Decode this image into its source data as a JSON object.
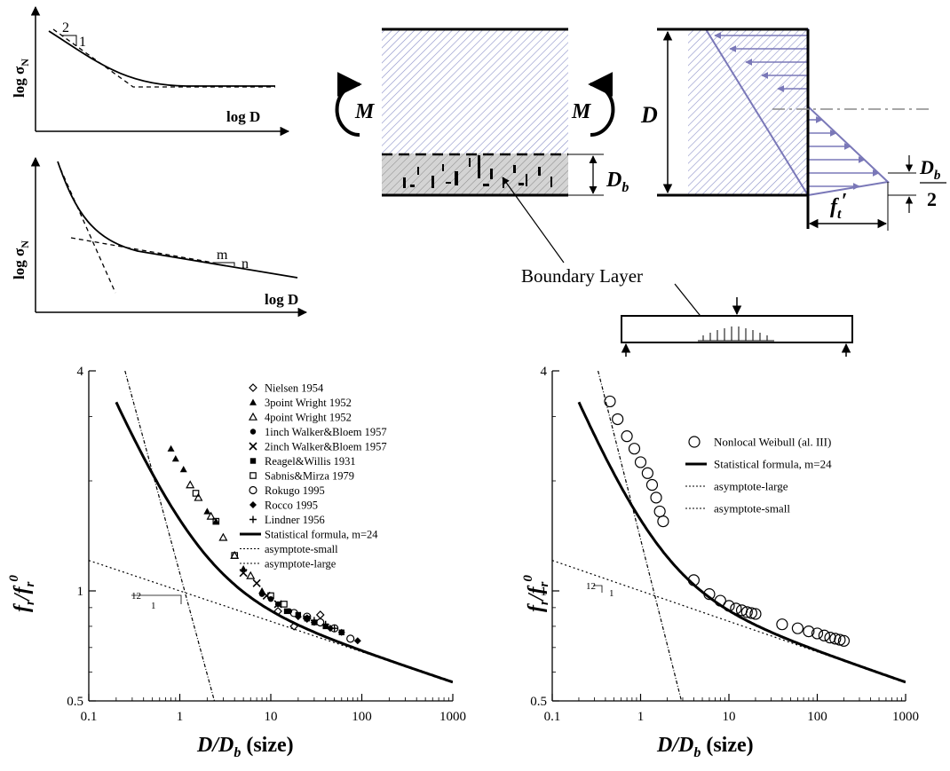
{
  "colors": {
    "line": "#000000",
    "stress": "#7a78b8",
    "hatch": "#8a8fc8",
    "layer": "#bfbfbf",
    "centerline": "#888888"
  },
  "sketch_top": {
    "ylabel": "log σ",
    "ysub": "N",
    "xlabel": "log D",
    "slope_rise": "2",
    "slope_run": "1"
  },
  "sketch_bottom": {
    "ylabel": "log σ",
    "ysub": "N",
    "xlabel": "log D",
    "slope_m": "m",
    "slope_n": "n"
  },
  "beam": {
    "moment_left": "M",
    "moment_right": "M",
    "layer_label": "D",
    "layer_sub": "b",
    "boundary_label": "Boundary Layer"
  },
  "stress": {
    "depth": "D",
    "ft": "f",
    "ft_sub": "t",
    "ft_prime": "′",
    "half_num": "D",
    "half_num_sub": "b",
    "half_den": "2"
  },
  "chart_data": [
    {
      "type": "scatter",
      "xlabel": "D/D",
      "xlabel_sub": "b",
      "xlabel_tail": " (size)",
      "ylabel": "f",
      "ylabel_sub": "r",
      "ylabel_mid": "/f",
      "ylabel_sub2": "r",
      "ylabel_sup": "0",
      "xscale": "log",
      "yscale": "log",
      "xlim": [
        0.1,
        1000
      ],
      "ylim": [
        0.5,
        4
      ],
      "xticks": [
        "0.1",
        "1",
        "10",
        "100",
        "1000"
      ],
      "yticks": [
        "0.5",
        "1",
        "4"
      ],
      "slope_label_rise": "12",
      "slope_label_run": "1",
      "legend": [
        {
          "name": "Nielsen 1954",
          "marker": "diamond-open"
        },
        {
          "name": "3point Wright 1952",
          "marker": "triangle-filled"
        },
        {
          "name": "4point Wright 1952",
          "marker": "triangle-open"
        },
        {
          "name": "1inch Walker&Bloem 1957",
          "marker": "circle-filled"
        },
        {
          "name": "2inch Walker&Bloem 1957",
          "marker": "x"
        },
        {
          "name": "Reagel&Willis 1931",
          "marker": "square-filled"
        },
        {
          "name": "Sabnis&Mirza 1979",
          "marker": "square-open"
        },
        {
          "name": "Rokugo 1995",
          "marker": "circle-open"
        },
        {
          "name": "Rocco 1995",
          "marker": "diamond-filled"
        },
        {
          "name": "Lindner 1956",
          "marker": "plus"
        },
        {
          "name": "Statistical formula, m=24",
          "marker": "line-thick"
        },
        {
          "name": "asymptote-small",
          "marker": "line-dot"
        },
        {
          "name": "asymptote-large",
          "marker": "line-dot"
        }
      ],
      "series": [
        {
          "name": "3point Wright 1952",
          "marker": "triangle-filled",
          "x": [
            0.8,
            0.9,
            1.1,
            2.0,
            2.5,
            5,
            8
          ],
          "y": [
            2.45,
            2.3,
            2.15,
            1.65,
            1.55,
            1.15,
            1.0
          ]
        },
        {
          "name": "4point Wright 1952",
          "marker": "triangle-open",
          "x": [
            1.3,
            1.6,
            2.2,
            3,
            4,
            6
          ],
          "y": [
            1.95,
            1.8,
            1.6,
            1.4,
            1.25,
            1.1
          ]
        },
        {
          "name": "Sabnis&Mirza 1979",
          "marker": "square-open",
          "x": [
            1.5,
            2.5,
            4,
            10,
            14
          ],
          "y": [
            1.85,
            1.55,
            1.25,
            0.97,
            0.92
          ]
        },
        {
          "name": "2inch Walker&Bloem 1957",
          "marker": "x",
          "x": [
            5,
            7,
            9,
            12
          ],
          "y": [
            1.12,
            1.05,
            0.97,
            0.92
          ]
        },
        {
          "name": "1inch Walker&Bloem 1957",
          "marker": "circle-filled",
          "x": [
            8,
            10,
            12,
            16
          ],
          "y": [
            0.98,
            0.95,
            0.92,
            0.88
          ]
        },
        {
          "name": "Reagel&Willis 1931",
          "marker": "square-filled",
          "x": [
            15,
            20,
            25,
            30,
            40,
            60
          ],
          "y": [
            0.88,
            0.86,
            0.84,
            0.82,
            0.8,
            0.77
          ]
        },
        {
          "name": "Rokugo 1995",
          "marker": "circle-open",
          "x": [
            18,
            25,
            35,
            50,
            75
          ],
          "y": [
            0.87,
            0.85,
            0.82,
            0.79,
            0.74
          ]
        },
        {
          "name": "Rocco 1995",
          "marker": "diamond-filled",
          "x": [
            20,
            30,
            45,
            60,
            90
          ],
          "y": [
            0.85,
            0.82,
            0.79,
            0.77,
            0.73
          ]
        },
        {
          "name": "Nielsen 1954",
          "marker": "diamond-open",
          "x": [
            12,
            18,
            25,
            35
          ],
          "y": [
            0.88,
            0.8,
            0.84,
            0.86
          ]
        },
        {
          "name": "Lindner 1956",
          "marker": "plus",
          "x": [
            30,
            40,
            50
          ],
          "y": [
            0.83,
            0.81,
            0.79
          ]
        }
      ]
    },
    {
      "type": "scatter",
      "xlabel": "D/D",
      "xlabel_sub": "b",
      "xlabel_tail": " (size)",
      "ylabel": "f",
      "ylabel_sub": "r",
      "ylabel_mid": "/f",
      "ylabel_sub2": "r",
      "ylabel_sup": "0",
      "xscale": "log",
      "yscale": "log",
      "xlim": [
        0.1,
        1000
      ],
      "ylim": [
        0.5,
        4
      ],
      "xticks": [
        "0.1",
        "1",
        "10",
        "100",
        "1000"
      ],
      "yticks": [
        "0.5",
        "1",
        "4"
      ],
      "slope_label_rise": "12",
      "slope_label_run": "1",
      "legend": [
        {
          "name": "Nonlocal Weibull (al. III)",
          "marker": "circle-open"
        },
        {
          "name": "Statistical formula, m=24",
          "marker": "line-thick"
        },
        {
          "name": "asymptote-large",
          "marker": "line-dot"
        },
        {
          "name": "asymptote-small",
          "marker": "line-dot"
        }
      ],
      "series": [
        {
          "name": "Nonlocal Weibull (al. III)",
          "marker": "circle-open",
          "x": [
            0.45,
            0.55,
            0.7,
            0.85,
            1.0,
            1.2,
            1.35,
            1.5,
            1.65,
            1.8,
            4,
            6,
            8,
            10,
            12,
            14,
            16,
            18,
            20,
            40,
            60,
            80,
            100,
            120,
            140,
            160,
            180,
            200
          ],
          "y": [
            3.3,
            2.95,
            2.65,
            2.45,
            2.25,
            2.1,
            1.95,
            1.8,
            1.65,
            1.55,
            1.07,
            0.98,
            0.94,
            0.91,
            0.895,
            0.885,
            0.875,
            0.87,
            0.865,
            0.81,
            0.79,
            0.775,
            0.765,
            0.755,
            0.745,
            0.74,
            0.735,
            0.73
          ]
        }
      ]
    }
  ]
}
